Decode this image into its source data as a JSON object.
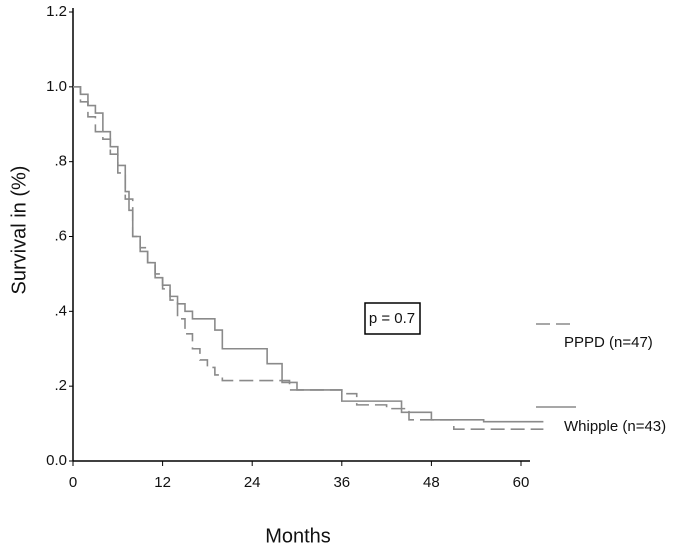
{
  "chart_data": {
    "type": "line",
    "step": true,
    "y_label": "Survival in (%)",
    "x_label": "Months",
    "annotation": "p = 0.7",
    "xlim": [
      0,
      60
    ],
    "xticks": [
      0,
      12,
      24,
      36,
      48,
      60
    ],
    "ylim": [
      0,
      1.2
    ],
    "yticks": [
      {
        "value": 0,
        "label": "0.0"
      },
      {
        "value": 0.2,
        "label": ".2"
      },
      {
        "value": 0.4,
        "label": ".4"
      },
      {
        "value": 0.6,
        "label": ".6"
      },
      {
        "value": 0.8,
        "label": ".8"
      },
      {
        "value": 1.0,
        "label": "1.0"
      },
      1.2
    ],
    "series": [
      {
        "name": "PPPD (n=47)",
        "color": "#8a8a8a",
        "dash": "14,6",
        "x": [
          0,
          1,
          2,
          3,
          4,
          5,
          6,
          7,
          8,
          9,
          10,
          11,
          12,
          13,
          14,
          15,
          16,
          17,
          18,
          19,
          20,
          29,
          36,
          38,
          42,
          45,
          51,
          63
        ],
        "values": [
          1.0,
          0.96,
          0.92,
          0.88,
          0.86,
          0.82,
          0.77,
          0.7,
          0.6,
          0.57,
          0.53,
          0.5,
          0.46,
          0.43,
          0.38,
          0.34,
          0.3,
          0.27,
          0.25,
          0.23,
          0.215,
          0.19,
          0.18,
          0.15,
          0.14,
          0.11,
          0.085,
          0.085
        ]
      },
      {
        "name": "Whipple (n=43)",
        "color": "#8a8a8a",
        "dash": "none",
        "x": [
          0,
          1,
          2,
          3,
          4,
          5,
          6,
          7,
          7.5,
          8,
          9,
          10,
          11,
          12,
          13,
          14,
          15,
          16,
          19,
          20,
          26,
          28,
          30,
          36,
          44,
          48,
          55,
          63
        ],
        "values": [
          1.0,
          0.98,
          0.95,
          0.93,
          0.88,
          0.84,
          0.79,
          0.72,
          0.67,
          0.6,
          0.56,
          0.53,
          0.49,
          0.47,
          0.44,
          0.42,
          0.4,
          0.38,
          0.35,
          0.3,
          0.26,
          0.21,
          0.19,
          0.16,
          0.13,
          0.11,
          0.105,
          0.105
        ]
      }
    ]
  }
}
